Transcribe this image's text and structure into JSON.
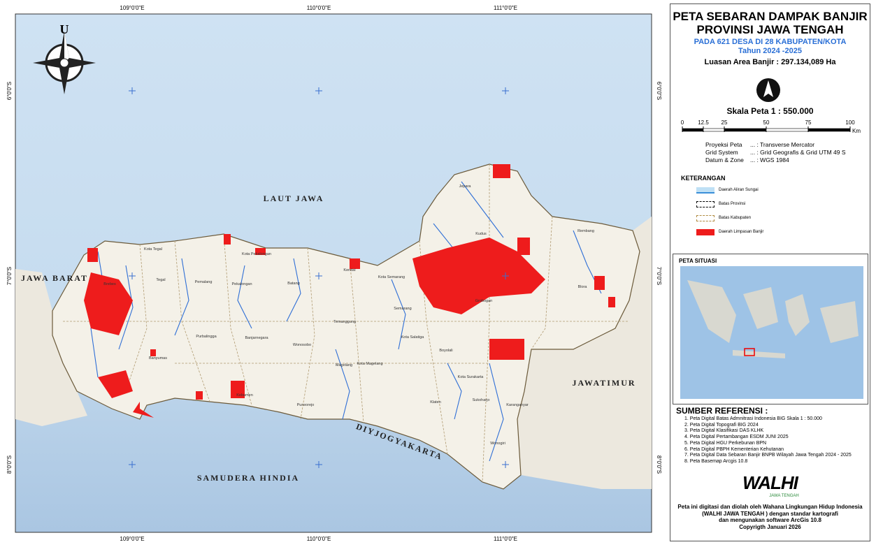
{
  "map": {
    "coordinates": {
      "top": [
        "109°0'0\"E",
        "110°0'0\"E",
        "111°0'0\"E"
      ],
      "bottom": [
        "109°0'0\"E",
        "110°0'0\"E",
        "111°0'0\"E"
      ],
      "left": [
        "6°0'0\"S",
        "7°0'0\"S",
        "8°0'0\"S"
      ],
      "right": [
        "6°0'0\"S",
        "7°0'0\"S",
        "8°0'0\"S"
      ]
    },
    "north": "U",
    "regions": [
      "LAUT JAWA",
      "JAWA BARAT",
      "JAWATIMUR",
      "SAMUDERA HINDIA",
      "DIYJOGYAKARTA"
    ],
    "districts": [
      "Jepara",
      "Kudus",
      "Rembang",
      "Blora",
      "Grobogan",
      "Kota Semarang",
      "Semarang",
      "Kendal",
      "Batang",
      "Pekalongan",
      "Pemalang",
      "Tegal",
      "Kota Tegal",
      "Brebes",
      "Kota Pekalongan",
      "Banyumas",
      "Purbalingga",
      "Banjarnegara",
      "Wonosobo",
      "Temanggung",
      "Magelang",
      "Kota Magelang",
      "Purworejo",
      "Kebumen",
      "Kota Salatiga",
      "Boyolali",
      "Klaten",
      "Kota Surakarta",
      "Sukoharjo",
      "Karanganyar",
      "Wonogiri"
    ]
  },
  "panel": {
    "title": [
      "PETA SEBARAN DAMPAK BANJIR",
      "PROVINSI JAWA TENGAH"
    ],
    "subtitle": [
      "PADA 621 DESA DI 28 KABUPATEN/KOTA",
      "Tahun 2024 -2025"
    ],
    "area": "Luasan Area Banjir : 297.134,089 Ha",
    "scale": "Skala Peta 1 : 550.000",
    "scale_ticks": [
      0,
      12.5,
      25,
      50,
      75,
      100
    ],
    "scale_unit": "Km",
    "projection": [
      [
        "Proyeksi Peta",
        "... : Transverse Mercator"
      ],
      [
        "Grid System",
        "... : Grid Geografis  & Grid UTM 49 S"
      ],
      [
        "Datum & Zone",
        "... :  WGS 1984"
      ]
    ],
    "legend_title": "KETERANGAN",
    "legend": [
      "Daerah Aliran Sungai",
      "Batas Provinsi",
      "Batas Kabupaten",
      "Daerah Limpasan Banjir"
    ],
    "inset_title": "PETA SITUASI",
    "references_title": "SUMBER REFERENSI :",
    "references": [
      "1. Peta Digital Batas Admnitrasi Indonesia BIG Skala 1 : 50.000",
      "2. Peta Digital Topografi BIG 2024",
      "3. Peta Digital Klasifikasi DAS KLHK",
      "4. Peta Digital Pertambangan ESDM JUNI 2025",
      "5. Peta Digital HGU Perkebunan BPN",
      "6. Peta Digital PBPH Kementerian Kehutanan",
      "7. Peta Digital Data Sebaran Banjir BNPB Wilayah Jawa Tengah 2024 - 2025",
      "8. Peta Basemap Arcgis 10.8"
    ],
    "logo": "WALHI",
    "logo_sub": "JAWA TENGAH",
    "footer": [
      "Peta ini digitasi dan diolah oleh Wahana Lingkungan Hidup Indonesia",
      "(WALHI JAWA TENGAH ) dengan standar kartografi",
      "dan mengunakan software ArcGis 10.8",
      "Copyrigth Januari 2026"
    ]
  }
}
